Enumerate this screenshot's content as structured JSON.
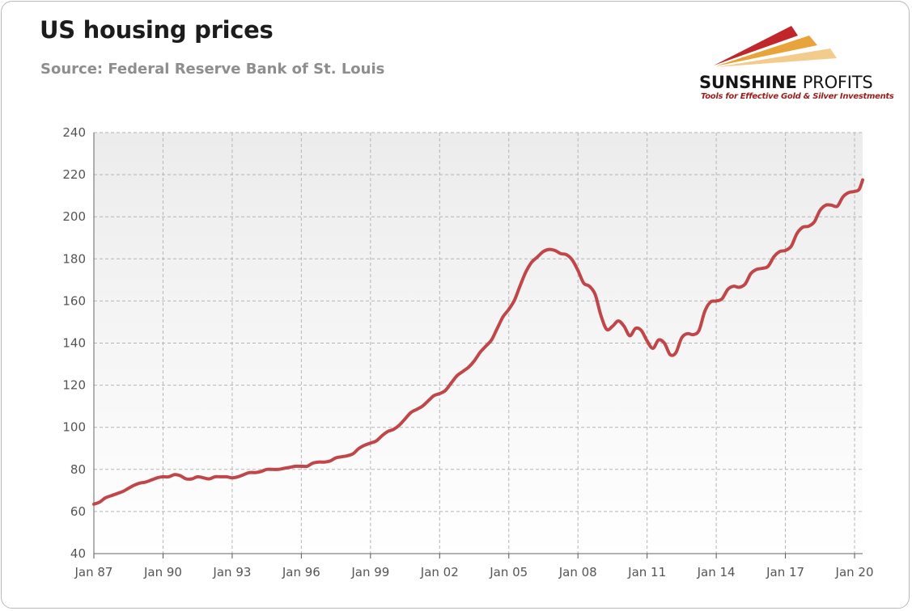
{
  "header": {
    "title": "US housing prices",
    "subtitle": "Source: Federal Reserve Bank of St. Louis"
  },
  "logo": {
    "brand_bold": "SUNSHINE",
    "brand_light": "PROFITS",
    "tagline": "Tools for Effective Gold & Silver Investments",
    "colors": [
      "#c0262a",
      "#e8a33a",
      "#f2cc8c"
    ]
  },
  "chart_data": {
    "type": "line",
    "title": "US housing prices",
    "xlabel": "",
    "ylabel": "",
    "ylim": [
      40,
      240
    ],
    "xlim": [
      1987.0,
      2020.35
    ],
    "y_ticks": [
      40,
      60,
      80,
      100,
      120,
      140,
      160,
      180,
      200,
      220,
      240
    ],
    "x_ticks": [
      {
        "label": "Jan 87",
        "x": 1987
      },
      {
        "label": "Jan 90",
        "x": 1990
      },
      {
        "label": "Jan 93",
        "x": 1993
      },
      {
        "label": "Jan 96",
        "x": 1996
      },
      {
        "label": "Jan 99",
        "x": 1999
      },
      {
        "label": "Jan 02",
        "x": 2002
      },
      {
        "label": "Jan 05",
        "x": 2005
      },
      {
        "label": "Jan 08",
        "x": 2008
      },
      {
        "label": "Jan 11",
        "x": 2011
      },
      {
        "label": "Jan 14",
        "x": 2014
      },
      {
        "label": "Jan 17",
        "x": 2017
      },
      {
        "label": "Jan 20",
        "x": 2020
      }
    ],
    "grid": true,
    "line_color": "#c0464a",
    "series": [
      {
        "values": [
          [
            1987.0,
            63.5
          ],
          [
            1987.25,
            64.5
          ],
          [
            1987.5,
            66.5
          ],
          [
            1987.75,
            67.5
          ],
          [
            1988.0,
            68.5
          ],
          [
            1988.25,
            69.5
          ],
          [
            1988.5,
            71.0
          ],
          [
            1988.75,
            72.5
          ],
          [
            1989.0,
            73.5
          ],
          [
            1989.25,
            74.0
          ],
          [
            1989.5,
            75.0
          ],
          [
            1989.75,
            76.0
          ],
          [
            1990.0,
            76.5
          ],
          [
            1990.25,
            76.5
          ],
          [
            1990.5,
            77.5
          ],
          [
            1990.75,
            77.0
          ],
          [
            1991.0,
            75.5
          ],
          [
            1991.25,
            75.5
          ],
          [
            1991.5,
            76.5
          ],
          [
            1991.75,
            76.0
          ],
          [
            1992.0,
            75.5
          ],
          [
            1992.25,
            76.5
          ],
          [
            1992.5,
            76.5
          ],
          [
            1992.75,
            76.5
          ],
          [
            1993.0,
            76.0
          ],
          [
            1993.25,
            76.5
          ],
          [
            1993.5,
            77.5
          ],
          [
            1993.75,
            78.5
          ],
          [
            1994.0,
            78.5
          ],
          [
            1994.25,
            79.0
          ],
          [
            1994.5,
            80.0
          ],
          [
            1994.75,
            80.0
          ],
          [
            1995.0,
            80.0
          ],
          [
            1995.25,
            80.5
          ],
          [
            1995.5,
            81.0
          ],
          [
            1995.75,
            81.5
          ],
          [
            1996.0,
            81.5
          ],
          [
            1996.25,
            81.5
          ],
          [
            1996.5,
            83.0
          ],
          [
            1996.75,
            83.5
          ],
          [
            1997.0,
            83.5
          ],
          [
            1997.25,
            84.0
          ],
          [
            1997.5,
            85.5
          ],
          [
            1997.75,
            86.0
          ],
          [
            1998.0,
            86.5
          ],
          [
            1998.25,
            87.5
          ],
          [
            1998.5,
            90.0
          ],
          [
            1998.75,
            91.5
          ],
          [
            1999.0,
            92.5
          ],
          [
            1999.25,
            93.5
          ],
          [
            1999.5,
            96.0
          ],
          [
            1999.75,
            98.0
          ],
          [
            2000.0,
            99.0
          ],
          [
            2000.25,
            101.0
          ],
          [
            2000.5,
            104.0
          ],
          [
            2000.75,
            107.0
          ],
          [
            2001.0,
            108.5
          ],
          [
            2001.25,
            110.0
          ],
          [
            2001.5,
            112.5
          ],
          [
            2001.75,
            115.0
          ],
          [
            2002.0,
            116.0
          ],
          [
            2002.25,
            117.5
          ],
          [
            2002.5,
            121.0
          ],
          [
            2002.75,
            124.5
          ],
          [
            2003.0,
            126.5
          ],
          [
            2003.25,
            128.5
          ],
          [
            2003.5,
            131.5
          ],
          [
            2003.75,
            135.5
          ],
          [
            2004.0,
            138.5
          ],
          [
            2004.25,
            141.5
          ],
          [
            2004.5,
            147.0
          ],
          [
            2004.75,
            152.5
          ],
          [
            2005.0,
            156.0
          ],
          [
            2005.25,
            160.5
          ],
          [
            2005.5,
            167.5
          ],
          [
            2005.75,
            174.0
          ],
          [
            2006.0,
            178.5
          ],
          [
            2006.25,
            181.0
          ],
          [
            2006.5,
            183.5
          ],
          [
            2006.75,
            184.5
          ],
          [
            2007.0,
            184.0
          ],
          [
            2007.25,
            182.5
          ],
          [
            2007.5,
            182.0
          ],
          [
            2007.75,
            179.5
          ],
          [
            2008.0,
            174.5
          ],
          [
            2008.25,
            168.5
          ],
          [
            2008.5,
            167.0
          ],
          [
            2008.75,
            163.0
          ],
          [
            2009.0,
            153.0
          ],
          [
            2009.25,
            146.5
          ],
          [
            2009.5,
            148.0
          ],
          [
            2009.75,
            150.5
          ],
          [
            2010.0,
            148.0
          ],
          [
            2010.25,
            143.5
          ],
          [
            2010.5,
            147.0
          ],
          [
            2010.75,
            146.0
          ],
          [
            2011.0,
            141.0
          ],
          [
            2011.25,
            137.5
          ],
          [
            2011.5,
            141.5
          ],
          [
            2011.75,
            140.0
          ],
          [
            2012.0,
            134.5
          ],
          [
            2012.25,
            135.5
          ],
          [
            2012.5,
            142.5
          ],
          [
            2012.75,
            144.5
          ],
          [
            2013.0,
            144.0
          ],
          [
            2013.25,
            146.0
          ],
          [
            2013.5,
            155.0
          ],
          [
            2013.75,
            159.5
          ],
          [
            2014.0,
            160.0
          ],
          [
            2014.25,
            161.0
          ],
          [
            2014.5,
            165.5
          ],
          [
            2014.75,
            167.0
          ],
          [
            2015.0,
            166.5
          ],
          [
            2015.25,
            168.0
          ],
          [
            2015.5,
            173.0
          ],
          [
            2015.75,
            175.0
          ],
          [
            2016.0,
            175.5
          ],
          [
            2016.25,
            176.5
          ],
          [
            2016.5,
            181.0
          ],
          [
            2016.75,
            183.5
          ],
          [
            2017.0,
            184.0
          ],
          [
            2017.25,
            186.0
          ],
          [
            2017.5,
            192.0
          ],
          [
            2017.75,
            195.0
          ],
          [
            2018.0,
            195.5
          ],
          [
            2018.25,
            197.5
          ],
          [
            2018.5,
            203.0
          ],
          [
            2018.75,
            205.5
          ],
          [
            2019.0,
            205.5
          ],
          [
            2019.25,
            205.0
          ],
          [
            2019.5,
            209.5
          ],
          [
            2019.75,
            211.5
          ],
          [
            2020.0,
            212.0
          ],
          [
            2020.2,
            213.0
          ],
          [
            2020.35,
            217.5
          ]
        ]
      }
    ]
  }
}
